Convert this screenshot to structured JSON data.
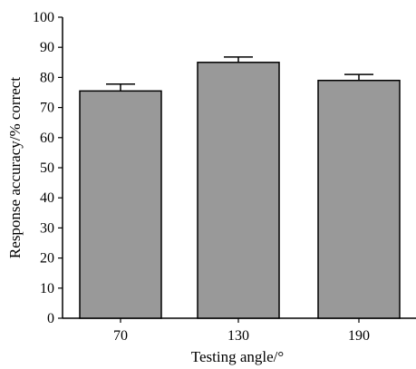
{
  "chart_data": {
    "type": "bar",
    "categories": [
      "70",
      "130",
      "190"
    ],
    "values": [
      75.5,
      85,
      79
    ],
    "error_upper": [
      2.3,
      1.8,
      2.0
    ],
    "title": "",
    "xlabel": "Testing angle/°",
    "ylabel": "Response accuracy/% correct",
    "ylim": [
      0,
      100
    ],
    "yticks": [
      "0",
      "10",
      "20",
      "30",
      "40",
      "50",
      "60",
      "70",
      "80",
      "90",
      "100"
    ],
    "grid": false,
    "bar_color": "#999999",
    "edge_color": "#000000"
  }
}
